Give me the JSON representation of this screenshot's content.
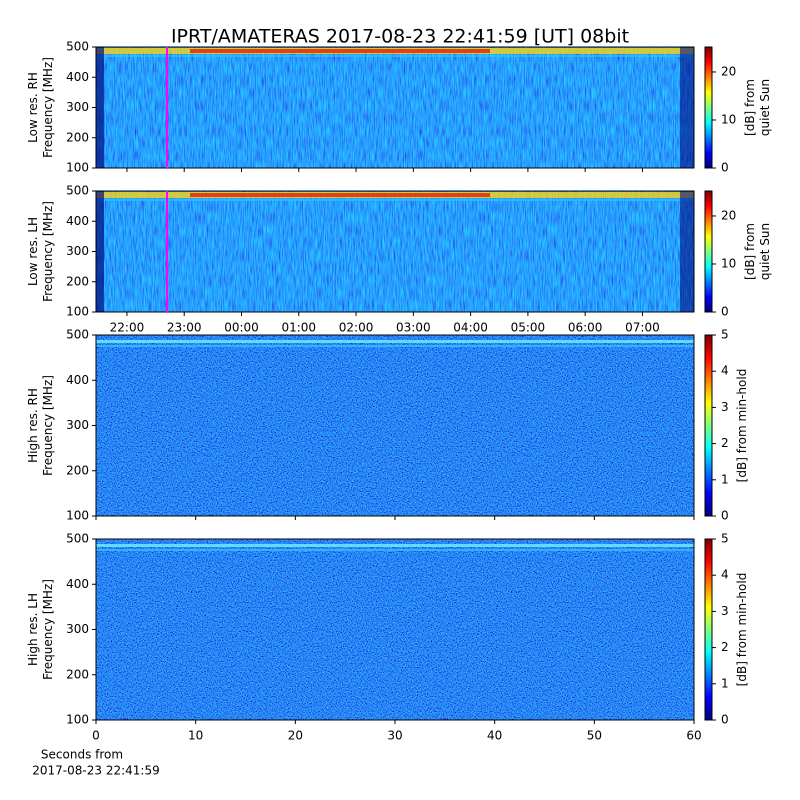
{
  "chart_data": [
    {
      "type": "spectrogram",
      "title": "IPRT/AMATERAS 2017-08-23 22:41:59 [UT]   08bit",
      "ylabel": [
        "Low res. RH",
        "Frequency [MHz]"
      ],
      "ylim": [
        100,
        500
      ],
      "yticks": [
        100,
        200,
        300,
        400,
        500
      ],
      "xlim": [
        21.46,
        31.9
      ],
      "marker_x": 22.7,
      "marker_color": "#ff00ff",
      "colormap": "jet",
      "colorbar": {
        "label": [
          "[dB] from",
          "quiet Sun"
        ],
        "lim": [
          0,
          25.2
        ],
        "ticks": [
          0,
          10,
          20
        ]
      }
    },
    {
      "type": "spectrogram",
      "ylabel": [
        "Low res. LH",
        "Frequency [MHz]"
      ],
      "ylim": [
        100,
        500
      ],
      "yticks": [
        100,
        200,
        300,
        400,
        500
      ],
      "xlim": [
        21.46,
        31.9
      ],
      "marker_x": 22.7,
      "marker_color": "#ff00ff",
      "colormap": "jet",
      "xticks": [
        {
          "value": 22,
          "label": "22:00"
        },
        {
          "value": 23,
          "label": "23:00"
        },
        {
          "value": 24,
          "label": "00:00"
        },
        {
          "value": 25,
          "label": "01:00"
        },
        {
          "value": 26,
          "label": "02:00"
        },
        {
          "value": 27,
          "label": "03:00"
        },
        {
          "value": 28,
          "label": "04:00"
        },
        {
          "value": 29,
          "label": "05:00"
        },
        {
          "value": 30,
          "label": "06:00"
        },
        {
          "value": 31,
          "label": "07:00"
        }
      ],
      "colorbar": {
        "label": [
          "[dB] from",
          "quiet Sun"
        ],
        "lim": [
          0,
          25.2
        ],
        "ticks": [
          0,
          10,
          20
        ]
      }
    },
    {
      "type": "spectrogram",
      "ylabel": [
        "High res. RH",
        "Frequency [MHz]"
      ],
      "ylim": [
        100,
        500
      ],
      "yticks": [
        100,
        200,
        300,
        400,
        500
      ],
      "xlim": [
        0,
        60
      ],
      "colormap": "jet",
      "colorbar": {
        "label": [
          "[dB] from min-hold"
        ],
        "lim": [
          0,
          5
        ],
        "ticks": [
          0,
          1,
          2,
          3,
          4,
          5
        ]
      }
    },
    {
      "type": "spectrogram",
      "ylabel": [
        "High res. LH",
        "Frequency [MHz]"
      ],
      "ylim": [
        100,
        500
      ],
      "yticks": [
        100,
        200,
        300,
        400,
        500
      ],
      "xlim": [
        0,
        60
      ],
      "xticks": [
        0,
        10,
        20,
        30,
        40,
        50,
        60
      ],
      "xlabel": [
        "Seconds from",
        "2017-08-23 22:41:59"
      ],
      "colormap": "jet",
      "colorbar": {
        "label": [
          "[dB] from min-hold"
        ],
        "lim": [
          0,
          5
        ],
        "ticks": [
          0,
          1,
          2,
          3,
          4,
          5
        ]
      }
    }
  ]
}
